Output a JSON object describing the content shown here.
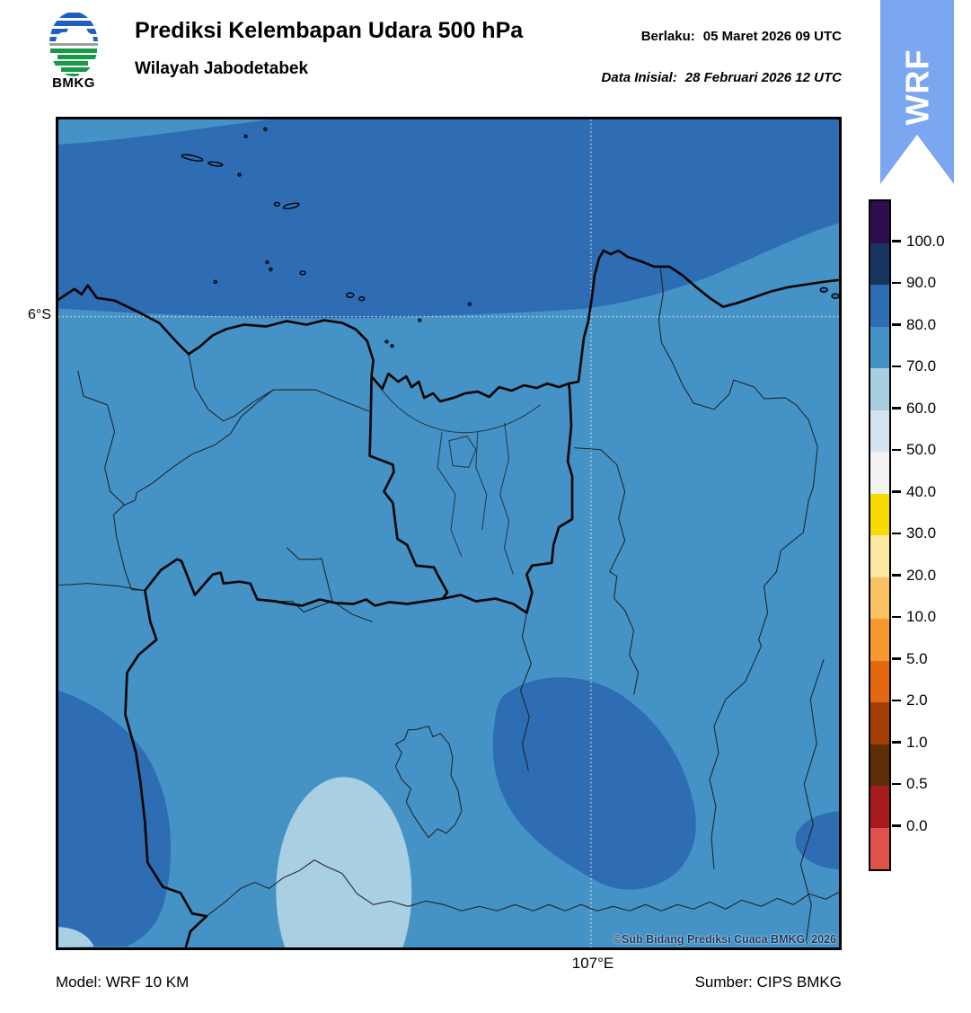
{
  "header": {
    "logo_caption": "BMKG",
    "title": "Prediksi Kelembapan Udara 500 hPa",
    "subtitle": "Wilayah Jabodetabek",
    "valid_label": "Berlaku:",
    "valid_value": "05 Maret 2026 09 UTC",
    "init_label": "Data Inisial:",
    "init_value": "28 Februari 2026 12 UTC",
    "ribbon_label": "WRF",
    "ribbon_color": "#7BA7F1"
  },
  "map": {
    "lat_tick": "6°S",
    "lon_tick": "107°E",
    "watermark": "©Sub Bidang Prediksi Cuaca BMKG, 2026",
    "fill_colors": {
      "humidity_80_90": "#2E6DB4",
      "humidity_70_80": "#4593C6",
      "humidity_60_70": "#A9CFE3"
    }
  },
  "footer": {
    "model": "Model: WRF 10 KM",
    "source": "Sumber: CIPS BMKG"
  },
  "colorbar": {
    "tick_labels": [
      "100.0",
      "90.0",
      "80.0",
      "70.0",
      "60.0",
      "50.0",
      "40.0",
      "30.0",
      "20.0",
      "10.0",
      "5.0",
      "2.0",
      "1.0",
      "0.5",
      "0.0"
    ],
    "segment_colors_top_to_bottom": [
      "#2F0C4D",
      "#17355E",
      "#2E6DB4",
      "#4593C6",
      "#A8CEE2",
      "#D3E4F0",
      "#F4F2F3",
      "#F8DB00",
      "#FBE7A0",
      "#FBC263",
      "#F8992F",
      "#E4680F",
      "#A33E05",
      "#5D2D07",
      "#A61C1C",
      "#E1524B"
    ]
  }
}
